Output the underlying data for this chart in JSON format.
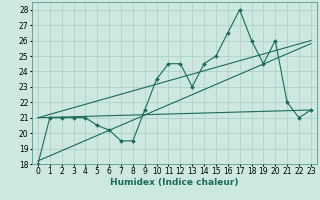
{
  "xlabel": "Humidex (Indice chaleur)",
  "xlim": [
    -0.5,
    23.5
  ],
  "ylim": [
    18,
    28.5
  ],
  "yticks": [
    18,
    19,
    20,
    21,
    22,
    23,
    24,
    25,
    26,
    27,
    28
  ],
  "xticks": [
    0,
    1,
    2,
    3,
    4,
    5,
    6,
    7,
    8,
    9,
    10,
    11,
    12,
    13,
    14,
    15,
    16,
    17,
    18,
    19,
    20,
    21,
    22,
    23
  ],
  "bg_color": "#cce8e0",
  "line_color": "#1a6b5a",
  "grid_color": "#aaccc4",
  "main_x": [
    0,
    1,
    2,
    3,
    4,
    5,
    6,
    7,
    8,
    9,
    10,
    11,
    12,
    13,
    14,
    15,
    16,
    17,
    18,
    19,
    20,
    21,
    22,
    23
  ],
  "main_y": [
    18,
    21,
    21,
    21,
    21,
    20.5,
    20.2,
    19.5,
    19.5,
    21.5,
    23.5,
    24.5,
    24.5,
    23,
    24.5,
    25,
    26.5,
    28,
    26,
    24.5,
    26,
    22,
    21,
    21.5
  ],
  "trend1_x": [
    0,
    23
  ],
  "trend1_y": [
    21,
    21.5
  ],
  "trend2_x": [
    0,
    23
  ],
  "trend2_y": [
    18.2,
    25.8
  ],
  "trend3_x": [
    0,
    23
  ],
  "trend3_y": [
    21,
    26
  ],
  "tick_fontsize": 5.5,
  "xlabel_fontsize": 6.5
}
